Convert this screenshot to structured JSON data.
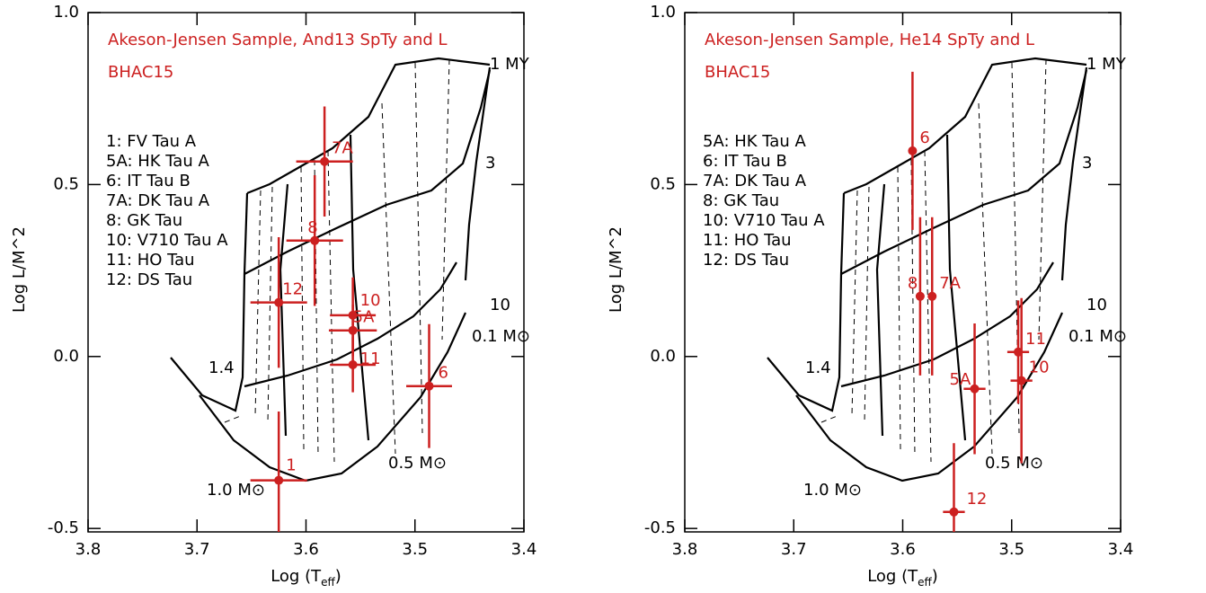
{
  "chart_data": [
    {
      "type": "scatter",
      "title": "Akeson-Jensen Sample, And13 SpTy and L",
      "subtitle": "BHAC15",
      "legend_lines": [
        "1: FV Tau A",
        "5A: HK Tau A",
        "6: IT Tau B",
        "7A: DK Tau A",
        "8: GK Tau",
        "10: V710 Tau A",
        "11: HO Tau",
        "12: DS Tau"
      ],
      "track_labels": [
        "1 MY",
        "3",
        "10",
        "0.1 M⊙",
        "0.5 M⊙",
        "1.0 M⊙",
        "1.4"
      ],
      "xlabel": "Log (T",
      "xlabel_sub": "eff",
      "xlabel_end": ")",
      "ylabel": "Log L/M^2",
      "xlim": [
        3.8,
        3.4
      ],
      "xticks": [
        3.8,
        3.7,
        3.6,
        3.5,
        3.4
      ],
      "ylim": [
        -0.51,
        1.0
      ],
      "yticks": [
        {
          "value": 1.0,
          "label": "1.0"
        },
        0.5,
        {
          "value": 0,
          "label": "0.0"
        },
        -0.5
      ],
      "color": "#cc2020",
      "labels": [
        "7A",
        "8",
        "12",
        "10",
        "5A",
        "11",
        "6",
        "1"
      ],
      "x": [
        3.583,
        3.592,
        3.625,
        3.557,
        3.557,
        3.557,
        3.487,
        3.625
      ],
      "values": [
        0.567,
        0.337,
        0.157,
        0.12,
        0.076,
        -0.024,
        -0.086,
        -0.36
      ],
      "xerr": [
        0.026,
        0.026,
        0.026,
        0.021,
        0.022,
        0.021,
        0.021,
        0.026
      ],
      "yerr": [
        0.16,
        0.19,
        0.19,
        0.11,
        0.075,
        0.08,
        0.18,
        0.2
      ]
    },
    {
      "type": "scatter",
      "title": "Akeson-Jensen Sample, He14 SpTy and L",
      "subtitle": "BHAC15",
      "legend_lines": [
        "5A: HK Tau A",
        "6: IT Tau B",
        "7A: DK Tau A",
        "8: GK Tau",
        "10: V710 Tau A",
        "11: HO Tau",
        "12: DS Tau"
      ],
      "track_labels": [
        "1 MY",
        "3",
        "10",
        "0.1 M⊙",
        "0.5 M⊙",
        "1.0 M⊙",
        "1.4"
      ],
      "xlabel": "Log (T",
      "xlabel_sub": "eff",
      "xlabel_end": ")",
      "ylabel": "Log L/M^2",
      "xlim": [
        3.8,
        3.4
      ],
      "xticks": [
        3.8,
        3.7,
        3.6,
        3.5,
        3.4
      ],
      "ylim": [
        -0.51,
        1.0
      ],
      "yticks": [
        {
          "value": 1.0,
          "label": "1.0"
        },
        0.5,
        {
          "value": 0,
          "label": "0.0"
        },
        -0.5
      ],
      "color": "#cc2020",
      "labels": [
        "6",
        "8",
        "7A",
        "5A",
        "11",
        "10",
        "12"
      ],
      "x": [
        3.591,
        3.584,
        3.573,
        3.534,
        3.494,
        3.491,
        3.553
      ],
      "values": [
        0.598,
        0.175,
        0.175,
        -0.094,
        0.013,
        -0.07,
        -0.452
      ],
      "xerr": [
        null,
        null,
        null,
        0.01,
        0.01,
        0.01,
        0.01
      ],
      "yerr": [
        0.23,
        0.23,
        0.23,
        0.19,
        0.15,
        0.24,
        0.2
      ]
    }
  ]
}
